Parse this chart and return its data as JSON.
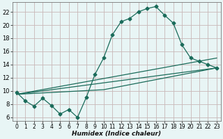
{
  "xlabel": "Humidex (Indice chaleur)",
  "background_color": "#e8f5f5",
  "grid_color": "#c8b8b8",
  "line_color": "#1a6b5a",
  "xlim": [
    -0.5,
    23.5
  ],
  "ylim": [
    5.5,
    23.5
  ],
  "yticks": [
    6,
    8,
    10,
    12,
    14,
    16,
    18,
    20,
    22
  ],
  "xticks": [
    0,
    1,
    2,
    3,
    4,
    5,
    6,
    7,
    8,
    9,
    10,
    11,
    12,
    13,
    14,
    15,
    16,
    17,
    18,
    19,
    20,
    21,
    22,
    23
  ],
  "line1_x": [
    0,
    1,
    2,
    3,
    4,
    5,
    6,
    7,
    8,
    9,
    10,
    11,
    12,
    13,
    14,
    15,
    16,
    17,
    18,
    19,
    20,
    21,
    22,
    23
  ],
  "line1_y": [
    9.8,
    8.5,
    7.7,
    8.9,
    7.8,
    6.5,
    7.2,
    6.0,
    9.0,
    12.5,
    15.0,
    18.5,
    20.5,
    21.0,
    22.0,
    22.5,
    22.8,
    21.5,
    20.3,
    17.0,
    15.0,
    14.5,
    14.0,
    13.5
  ],
  "line2_x": [
    0,
    23
  ],
  "line2_y": [
    9.5,
    13.5
  ],
  "line3_x": [
    0,
    23
  ],
  "line3_y": [
    9.5,
    15.0
  ],
  "line4_x": [
    0,
    10,
    23
  ],
  "line4_y": [
    9.5,
    10.2,
    13.5
  ],
  "markersize": 2.5,
  "linewidth": 0.9
}
